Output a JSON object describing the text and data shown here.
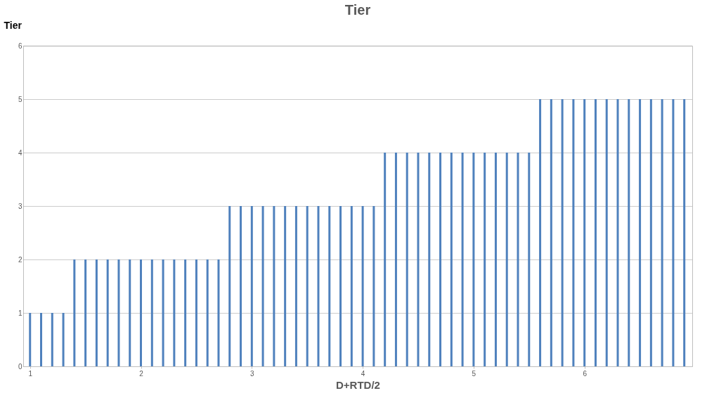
{
  "chart_data": {
    "type": "bar",
    "title": "Tier",
    "xlabel": "D+RTD/2",
    "ylabel": "Tier",
    "x": [
      1.0,
      1.1,
      1.2,
      1.3,
      1.4,
      1.5,
      1.6,
      1.7,
      1.8,
      1.9,
      2.0,
      2.1,
      2.2,
      2.3,
      2.4,
      2.5,
      2.6,
      2.7,
      2.8,
      2.9,
      3.0,
      3.1,
      3.2,
      3.3,
      3.4,
      3.5,
      3.6,
      3.7,
      3.8,
      3.9,
      4.0,
      4.1,
      4.2,
      4.3,
      4.4,
      4.5,
      4.6,
      4.7,
      4.8,
      4.9,
      5.0,
      5.1,
      5.2,
      5.3,
      5.4,
      5.5,
      5.6,
      5.7,
      5.8,
      5.9,
      6.0,
      6.1,
      6.2,
      6.3,
      6.4,
      6.5,
      6.6,
      6.7,
      6.8,
      6.9
    ],
    "values": [
      1,
      1,
      1,
      1,
      2,
      2,
      2,
      2,
      2,
      2,
      2,
      2,
      2,
      2,
      2,
      2,
      2,
      2,
      3,
      3,
      3,
      3,
      3,
      3,
      3,
      3,
      3,
      3,
      3,
      3,
      3,
      3,
      4,
      4,
      4,
      4,
      4,
      4,
      4,
      4,
      4,
      4,
      4,
      4,
      4,
      4,
      5,
      5,
      5,
      5,
      5,
      5,
      5,
      5,
      5,
      5,
      5,
      5,
      5,
      5
    ],
    "color": "#4f81bd",
    "xlim": [
      0.97,
      6.94
    ],
    "xticks": [
      1,
      2,
      3,
      4,
      5,
      6
    ],
    "ylim": [
      0,
      6
    ],
    "yticks": [
      0,
      1,
      2,
      3,
      4,
      5,
      6
    ],
    "grid": "y"
  }
}
